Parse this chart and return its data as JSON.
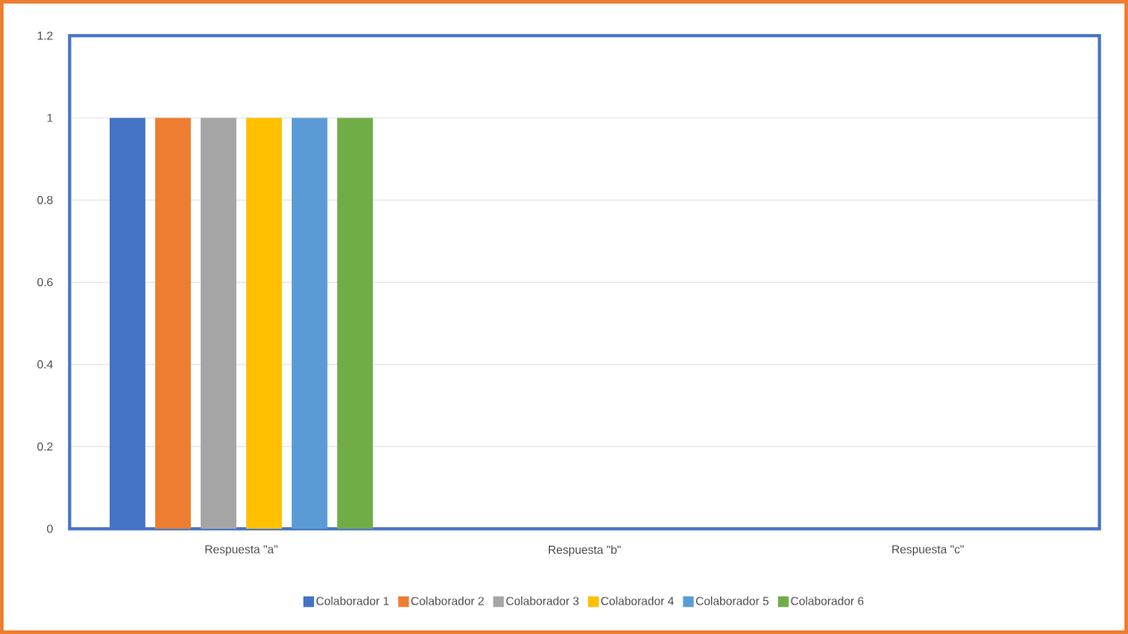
{
  "chart_data": {
    "type": "bar",
    "categories": [
      "Respuesta \"a\"",
      "Respuesta \"b\"",
      "Respuesta \"c\""
    ],
    "series": [
      {
        "name": "Colaborador 1",
        "color": "#4472c4",
        "values": [
          1,
          0,
          0
        ]
      },
      {
        "name": "Colaborador 2",
        "color": "#ed7d31",
        "values": [
          1,
          0,
          0
        ]
      },
      {
        "name": "Colaborador 3",
        "color": "#a5a5a5",
        "values": [
          1,
          0,
          0
        ]
      },
      {
        "name": "Colaborador 4",
        "color": "#ffc000",
        "values": [
          1,
          0,
          0
        ]
      },
      {
        "name": "Colaborador 5",
        "color": "#5b9bd5",
        "values": [
          1,
          0,
          0
        ]
      },
      {
        "name": "Colaborador 6",
        "color": "#70ad47",
        "values": [
          1,
          0,
          0
        ]
      }
    ],
    "ylim": [
      0,
      1.2
    ],
    "yticks": [
      0,
      0.2,
      0.4,
      0.6,
      0.8,
      1,
      1.2
    ],
    "grid": "y",
    "legend": "bottom"
  }
}
